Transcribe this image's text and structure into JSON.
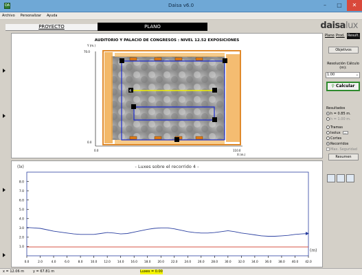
{
  "window": {
    "title": "Daisa v6.0",
    "icon_label": "DA"
  },
  "menu": [
    "Archivo",
    "Personalizar",
    "Ayuda"
  ],
  "tabs": {
    "proyecto": "PROYECTO",
    "plano": "PLANO"
  },
  "brand": {
    "main": "daisa",
    "suffix": "lux"
  },
  "plan": {
    "title": "AUDITORIO Y PALACIO DE CONGRESOS : NIVEL 12.52 EXPOSICIONES",
    "y_axis_label": "Y (m.)",
    "x_axis_label": "X (m.)",
    "y_top": "70.0",
    "y_bottom": "0.0",
    "x_left": "0.0",
    "x_right": "110.0",
    "point_label": "4"
  },
  "right_panel": {
    "tabs": [
      "Plano",
      "Prod.",
      "Result."
    ],
    "objetivos": "Objetivos",
    "resolucion_label": "Resolución Cálculo (m):",
    "resolucion_value": "1.00",
    "calcular": "Calcular",
    "resultados_label": "Resultados",
    "h1": "h = 0.85 m.",
    "h2": "h = 1.00 m.",
    "opciones": [
      "Tramas",
      "Isolux",
      "Cortes",
      "Recorridos"
    ],
    "max_seguridad": "Max. Seguridad",
    "resumen": "Resumen",
    "isolux_btn": "..."
  },
  "chart_data": {
    "type": "line",
    "title": "- Luxes sobre el recorrido 4 -",
    "ylabel": "(lx)",
    "xlabel": "(m)",
    "xlim": [
      0,
      42
    ],
    "ylim": [
      0,
      9
    ],
    "x_ticks": [
      "0.0",
      "2.0",
      "4.0",
      "6.0",
      "8.0",
      "10.0",
      "12.0",
      "14.0",
      "16.0",
      "18.0",
      "20.0",
      "22.0",
      "24.0",
      "26.0",
      "28.0",
      "30.0",
      "32.0",
      "34.0",
      "36.0",
      "38.0",
      "40.0",
      "42.0"
    ],
    "y_ticks": [
      "1.0",
      "2.0",
      "3.0",
      "4.0",
      "5.0",
      "6.0",
      "7.0",
      "8.0"
    ],
    "series": [
      {
        "color": "#2a3fa0",
        "x": [
          0,
          1,
          2,
          3,
          4,
          5,
          6,
          7,
          8,
          9,
          10,
          11,
          12,
          13,
          14,
          15,
          16,
          17,
          18,
          19,
          20,
          21,
          22,
          23,
          24,
          25,
          26,
          27,
          28,
          29,
          30,
          31,
          32,
          33,
          34,
          35,
          36,
          37,
          38,
          39,
          40,
          41,
          42
        ],
        "y": [
          3.05,
          3.0,
          2.95,
          2.8,
          2.65,
          2.55,
          2.45,
          2.35,
          2.3,
          2.3,
          2.3,
          2.4,
          2.5,
          2.45,
          2.35,
          2.4,
          2.55,
          2.7,
          2.85,
          2.95,
          3.0,
          3.0,
          2.9,
          2.75,
          2.6,
          2.5,
          2.45,
          2.45,
          2.5,
          2.6,
          2.7,
          2.6,
          2.45,
          2.35,
          2.25,
          2.15,
          2.1,
          2.1,
          2.15,
          2.2,
          2.3,
          2.35,
          2.4
        ]
      },
      {
        "color": "#d03a2a",
        "x": [
          0,
          42
        ],
        "y": [
          0.95,
          0.95
        ]
      }
    ]
  },
  "status": {
    "coords": "x = 12.06 m",
    "coords_y": "y = 67.81 m",
    "luxes": "Luxes = 0.00"
  }
}
